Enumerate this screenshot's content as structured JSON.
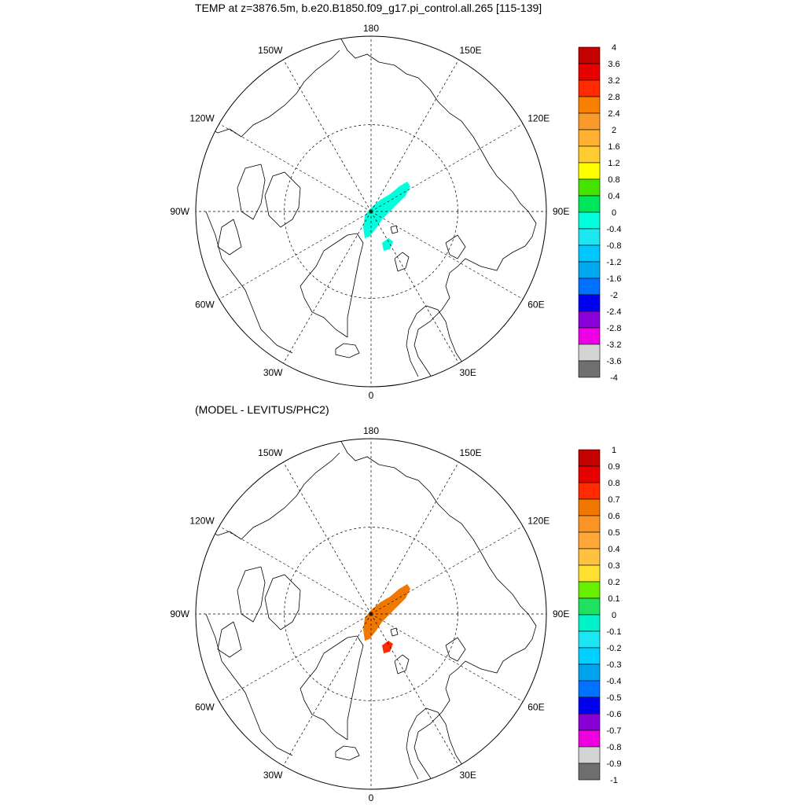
{
  "titles": {
    "top": "TEMP at z=3876.5m, b.e20.B1850.f09_g17.pi_control.all.265 [115-139]",
    "bottom": "(MODEL - LEVITUS/PHC2)"
  },
  "chart_data": [
    {
      "type": "heatmap",
      "projection": "north polar stereographic",
      "title": "TEMP at z=3876.5m, b.e20.B1850.f09_g17.pi_control.all.265 [115-139]",
      "lon_labels": [
        "180",
        "150E",
        "120E",
        "90E",
        "60E",
        "30E",
        "0",
        "30W",
        "60W",
        "90W",
        "120W",
        "150W"
      ],
      "colorbar": {
        "levels": [
          "4",
          "3.6",
          "3.2",
          "2.8",
          "2.4",
          "2",
          "1.6",
          "1.2",
          "0.8",
          "0.4",
          "0",
          "-0.4",
          "-0.8",
          "-1.2",
          "-1.6",
          "-2",
          "-2.4",
          "-2.8",
          "-3.2",
          "-3.6",
          "-4"
        ],
        "colors": [
          "#c40000",
          "#e60000",
          "#ff2a00",
          "#f88000",
          "#fa9a2a",
          "#ffb030",
          "#ffcc30",
          "#ffff00",
          "#44e400",
          "#00e65a",
          "#00ffdc",
          "#1ee6f0",
          "#00c8ff",
          "#00a8f0",
          "#0070ff",
          "#0000f0",
          "#8a00d8",
          "#ee00e6",
          "#d4d4d4",
          "#707070"
        ]
      },
      "field": [
        {
          "region": "Lomonosov Ridge band",
          "value": -0.2
        },
        {
          "region": "small patch near Svalbard",
          "value": -0.2
        }
      ]
    },
    {
      "type": "heatmap",
      "projection": "north polar stereographic",
      "title": "(MODEL - LEVITUS/PHC2)",
      "lon_labels": [
        "180",
        "150E",
        "120E",
        "90E",
        "60E",
        "30E",
        "0",
        "30W",
        "60W",
        "90W",
        "120W",
        "150W"
      ],
      "colorbar": {
        "levels": [
          "1",
          "0.9",
          "0.8",
          "0.7",
          "0.6",
          "0.5",
          "0.4",
          "0.3",
          "0.2",
          "0.1",
          "0",
          "-0.1",
          "-0.2",
          "-0.3",
          "-0.4",
          "-0.5",
          "-0.6",
          "-0.7",
          "-0.8",
          "-0.9",
          "-1"
        ],
        "colors": [
          "#c40000",
          "#e60000",
          "#ff2a00",
          "#f07800",
          "#fa9424",
          "#ffa83a",
          "#ffc240",
          "#ffe030",
          "#66f000",
          "#20e060",
          "#00f2c8",
          "#1ce6f4",
          "#00d0ff",
          "#00a4ee",
          "#0072ff",
          "#0000ee",
          "#8800d4",
          "#ee00e0",
          "#d4d4d4",
          "#6e6e6e"
        ]
      },
      "field": [
        {
          "region": "Lomonosov Ridge band",
          "value": 0.65
        },
        {
          "region": "small patch near Svalbard",
          "value": 0.75
        }
      ]
    }
  ]
}
